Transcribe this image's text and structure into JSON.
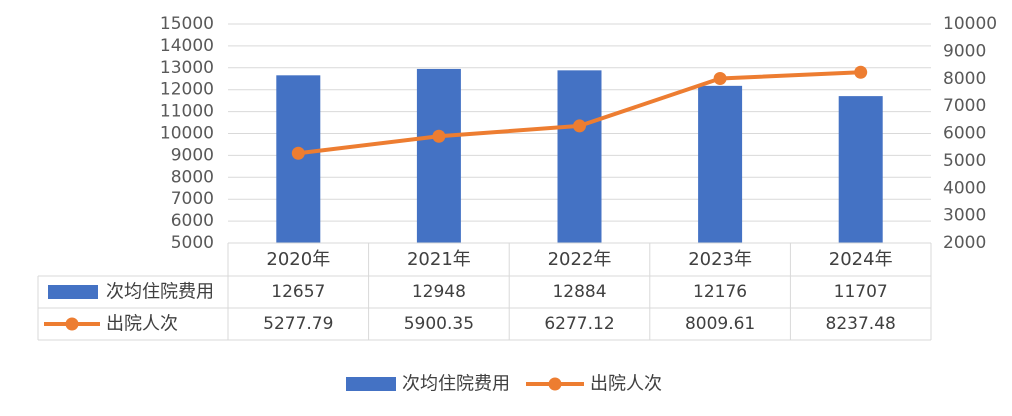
{
  "chart_data": {
    "type": "bar",
    "categories": [
      "2020年",
      "2021年",
      "2022年",
      "2023年",
      "2024年"
    ],
    "series": [
      {
        "name": "次均住院费用",
        "type": "bar",
        "axis": "left",
        "values": [
          12657,
          12948,
          12884,
          12176,
          11707
        ],
        "value_labels": [
          "12657",
          "12948",
          "12884",
          "12176",
          "11707"
        ],
        "color": "#4472C4"
      },
      {
        "name": "出院人次",
        "type": "line",
        "axis": "right",
        "values": [
          5277.79,
          5900.35,
          6277.12,
          8009.61,
          8237.48
        ],
        "value_labels": [
          "5277.79",
          "5900.35",
          "6277.12",
          "8009.61",
          "8237.48"
        ],
        "color": "#ED7D31"
      }
    ],
    "y_left": {
      "min": 5000,
      "max": 15000,
      "step": 1000,
      "ticks": [
        "5000",
        "6000",
        "7000",
        "8000",
        "9000",
        "10000",
        "11000",
        "12000",
        "13000",
        "14000",
        "15000"
      ]
    },
    "y_right": {
      "min": 2000,
      "max": 10000,
      "step": 1000,
      "ticks": [
        "2000",
        "3000",
        "4000",
        "5000",
        "6000",
        "7000",
        "8000",
        "9000",
        "10000"
      ]
    },
    "grid": true,
    "data_table": true,
    "legend": "bottom-center",
    "gridline_color": "#D9D9D9"
  }
}
